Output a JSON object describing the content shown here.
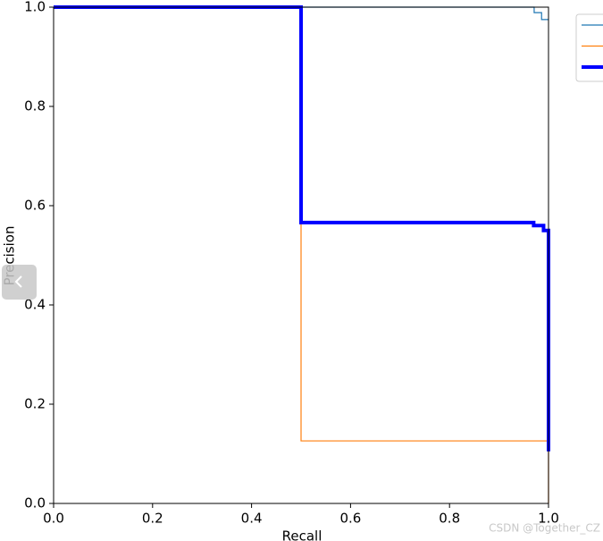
{
  "chart_data": {
    "type": "line",
    "xlabel": "Recall",
    "ylabel": "Precision",
    "xlim": [
      0,
      1
    ],
    "ylim": [
      0,
      1
    ],
    "xticks": [
      {
        "value": 0,
        "label": "0.0"
      },
      {
        "value": 0.2,
        "label": "0.2"
      },
      {
        "value": 0.4,
        "label": "0.4"
      },
      {
        "value": 0.6,
        "label": "0.6"
      },
      {
        "value": 0.8,
        "label": "0.8"
      },
      {
        "value": 1,
        "label": "1.0"
      }
    ],
    "yticks": [
      {
        "value": 0,
        "label": "0.0"
      },
      {
        "value": 0.2,
        "label": "0.2"
      },
      {
        "value": 0.4,
        "label": "0.4"
      },
      {
        "value": 0.6,
        "label": "0.6"
      },
      {
        "value": 0.8,
        "label": "0.8"
      },
      {
        "value": 1,
        "label": "1.0"
      }
    ],
    "series": [
      {
        "color": "#1f77b4",
        "width": 1.2,
        "x": [
          0,
          0.971,
          0.971,
          0.986,
          0.986,
          1
        ],
        "values": [
          1,
          1,
          0.989,
          0.989,
          0.975,
          0.975
        ]
      },
      {
        "color": "#ff7f0e",
        "width": 1.2,
        "x": [
          0,
          0.5,
          0.5,
          1,
          1
        ],
        "values": [
          1,
          1,
          0.126,
          0.126,
          0
        ]
      },
      {
        "color": "#0000ff",
        "width": 4,
        "x": [
          0,
          0.5,
          0.5,
          0.97,
          0.97,
          0.99,
          0.99,
          1,
          1
        ],
        "values": [
          1,
          1,
          0.566,
          0.566,
          0.56,
          0.56,
          0.55,
          0.55,
          0.105
        ]
      }
    ]
  },
  "watermark": "CSDN @Together_CZ"
}
